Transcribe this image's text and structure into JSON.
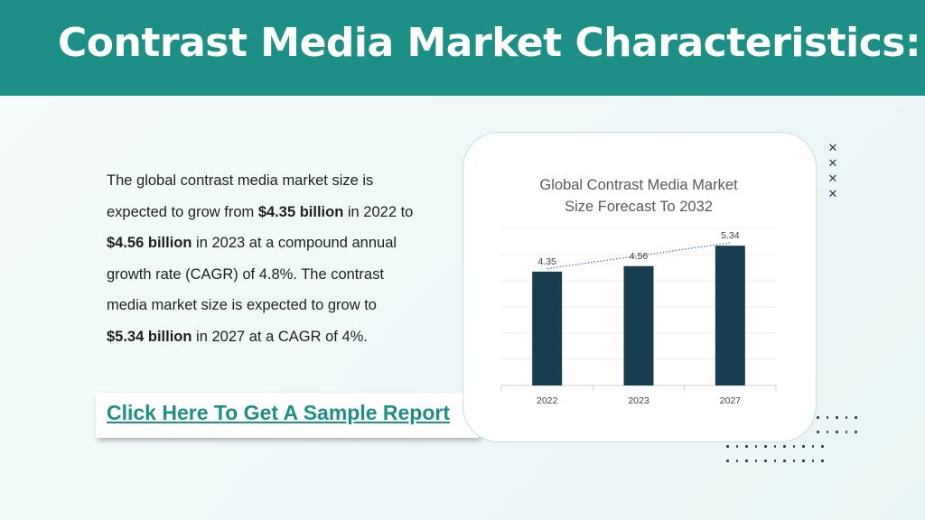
{
  "header": {
    "title": "Contrast Media Market Characteristics:"
  },
  "body": {
    "p1": "The global contrast media market size is expected to grow from ",
    "b1": "$4.35 billion",
    "p2": " in 2022 to ",
    "b2": "$4.56 billion",
    "p3": " in 2023 at a compound annual growth rate (CAGR) of 4.8%. The contrast media market size is expected to grow to ",
    "b3": "$5.34 billion",
    "p4": " in 2027 at a CAGR of 4%."
  },
  "cta": {
    "label": "Click Here To Get A Sample Report"
  },
  "colors": {
    "header_bg": "#1c8f86",
    "bar": "#173e4e",
    "trendline": "#4a6fa5",
    "cta_text": "#1c8f86"
  },
  "decor": {
    "xmark_icon": "x-mark-icon",
    "xmark_count": 4
  },
  "chart_data": {
    "type": "bar",
    "title": "Global Contrast Media Market Size Forecast To 2032",
    "title_lines": [
      "Global Contrast Media Market",
      "Size Forecast To 2032"
    ],
    "categories": [
      "2022",
      "2023",
      "2027"
    ],
    "values": [
      4.35,
      4.56,
      5.34
    ],
    "data_labels": [
      "4.35",
      "4.56",
      "5.34"
    ],
    "ylim": [
      0,
      6
    ],
    "grid": true,
    "trendline": "dotted linear",
    "xlabel": "",
    "ylabel": ""
  }
}
